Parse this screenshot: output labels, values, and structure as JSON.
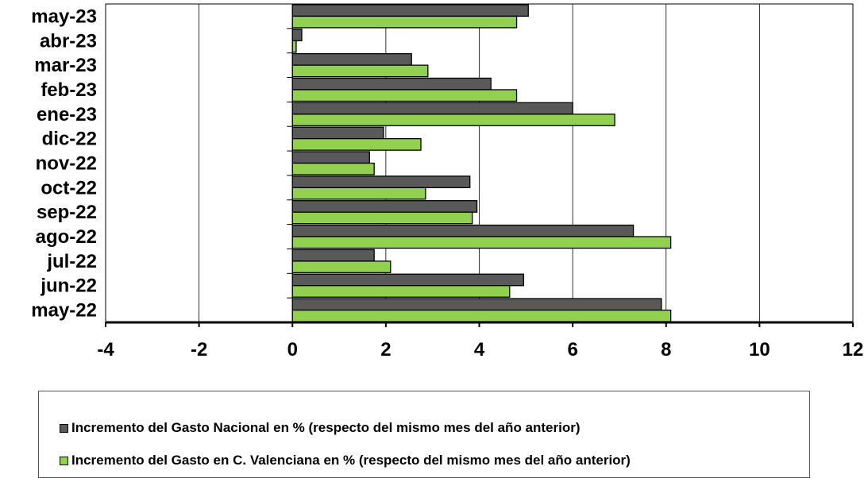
{
  "chart_data": {
    "type": "bar",
    "orientation": "horizontal",
    "categories": [
      "may-22",
      "jun-22",
      "jul-22",
      "ago-22",
      "sep-22",
      "oct-22",
      "nov-22",
      "dic-22",
      "ene-23",
      "feb-23",
      "mar-23",
      "abr-23",
      "may-23"
    ],
    "series": [
      {
        "name": "Incremento del Gasto Nacional en % (respecto del mismo mes del año anterior)",
        "color": "#595959",
        "values": [
          7.9,
          4.95,
          1.75,
          7.3,
          3.95,
          3.8,
          1.65,
          1.95,
          6.0,
          4.25,
          2.55,
          0.2,
          5.05
        ]
      },
      {
        "name": "Incremento del Gasto en C. Valenciana en % (respecto del mismo mes del año anterior)",
        "color": "#92d050",
        "values": [
          8.1,
          4.65,
          2.1,
          8.1,
          3.85,
          2.85,
          1.75,
          2.75,
          6.9,
          4.8,
          2.9,
          0.08,
          4.8
        ]
      }
    ],
    "xlim": [
      -4,
      12
    ],
    "xticks": [
      "-4",
      "-2",
      "0",
      "2",
      "4",
      "6",
      "8",
      "10",
      "12"
    ],
    "xlabel": "",
    "ylabel": "",
    "title": "",
    "grid": "vertical",
    "legend_position": "bottom"
  }
}
